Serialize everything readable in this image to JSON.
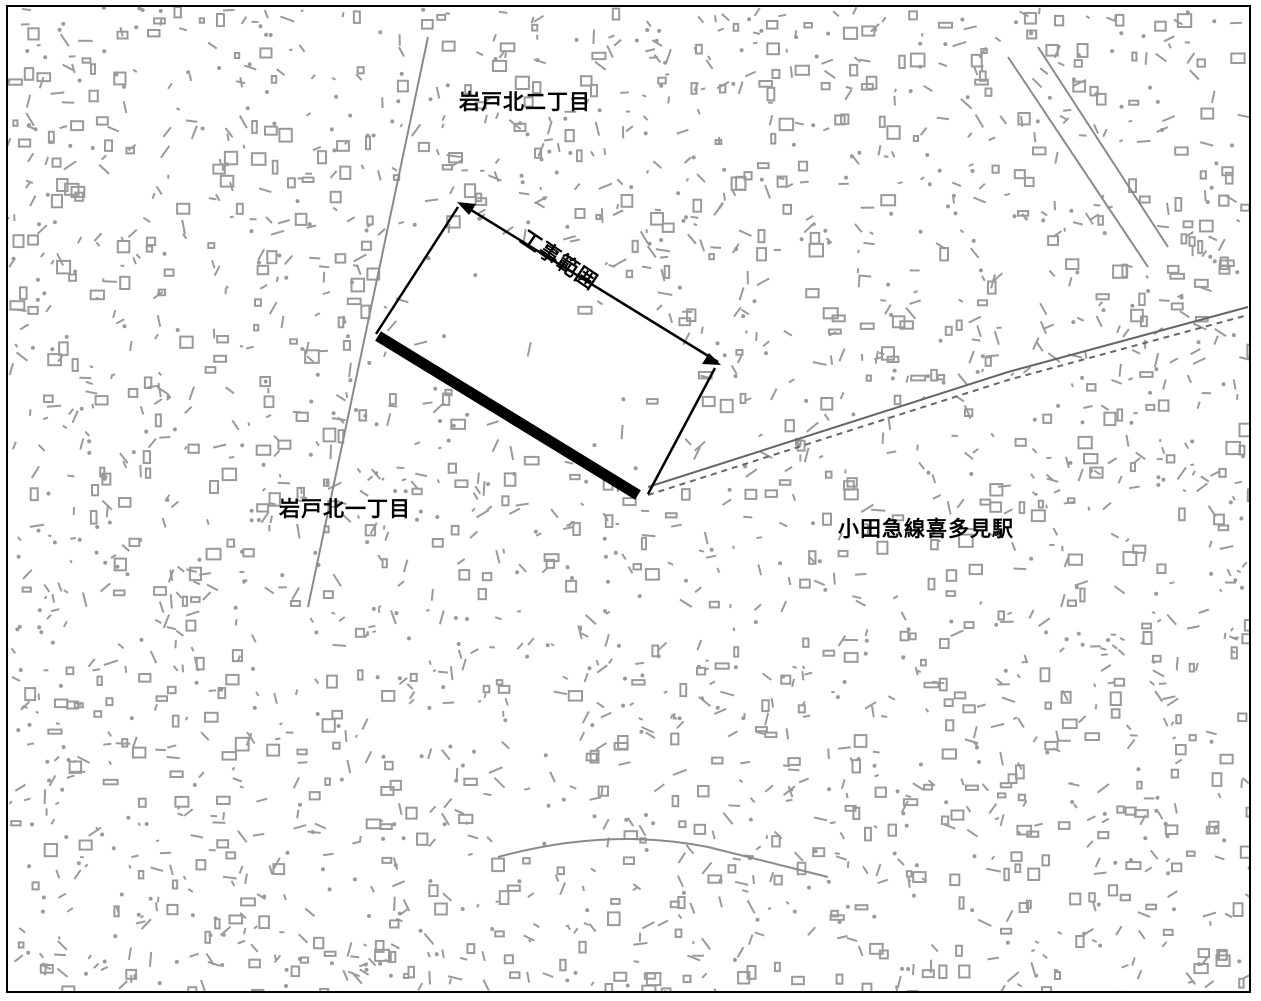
{
  "map": {
    "labels": {
      "district_north2": "岩戸北二丁目",
      "district_north1": "岩戸北一丁目",
      "station": "小田急線喜多見駅",
      "construction_range": "工事範囲"
    },
    "colors": {
      "background": "#ffffff",
      "lines": "#000000",
      "basemap": "#9a9a9a"
    },
    "icons": [
      "double-arrow-icon"
    ]
  }
}
